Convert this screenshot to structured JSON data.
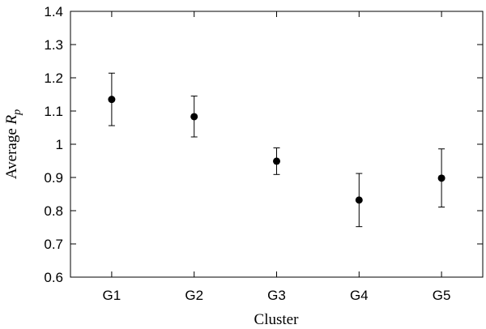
{
  "chart_data": {
    "type": "scatter",
    "title": "",
    "xlabel": "Cluster",
    "ylabel_main": "Average ",
    "ylabel_var": "R",
    "ylabel_sub": "p",
    "categories": [
      "G1",
      "G2",
      "G3",
      "G4",
      "G5"
    ],
    "values": [
      1.135,
      1.083,
      0.949,
      0.832,
      0.898
    ],
    "err_low": [
      1.056,
      1.022,
      0.909,
      0.752,
      0.811
    ],
    "err_high": [
      1.214,
      1.145,
      0.989,
      0.912,
      0.986
    ],
    "ylim": [
      0.6,
      1.4
    ],
    "yticks": [
      0.6,
      0.7,
      0.8,
      0.9,
      1.0,
      1.1,
      1.2,
      1.3,
      1.4
    ],
    "ytick_labels": [
      "0.6",
      "0.7",
      "0.8",
      "0.9",
      "1",
      "1.1",
      "1.2",
      "1.3",
      "1.4"
    ],
    "grid": false,
    "marker_color": "#000000",
    "errorbar_color": "#000000"
  }
}
